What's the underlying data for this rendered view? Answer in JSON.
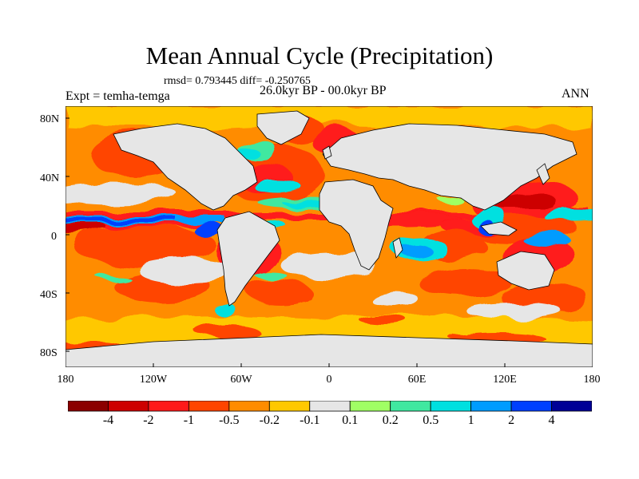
{
  "title": "Mean Annual Cycle (Precipitation)",
  "stats_text": "rmsd= 0.793445 diff= -0.250765",
  "period_text": "26.0kyr BP - 00.0kyr BP",
  "expt_text": "Expt = temha-temga",
  "season_text": "ANN",
  "lat_labels": [
    "80N",
    "40N",
    "0",
    "40S",
    "80S"
  ],
  "lon_labels": [
    "180",
    "120W",
    "60W",
    "0",
    "60E",
    "120E",
    "180"
  ],
  "colorbar": {
    "colors": [
      "#8b0000",
      "#cd0000",
      "#ff1a1a",
      "#ff4500",
      "#ff8c00",
      "#ffc800",
      "#e6e6e6",
      "#a0ff64",
      "#40e8a0",
      "#00e0e0",
      "#009cff",
      "#0040ff",
      "#000096"
    ],
    "labels": [
      "-4",
      "-2",
      "-1",
      "-0.5",
      "-0.2",
      "-0.1",
      "0.1",
      "0.2",
      "0.5",
      "1",
      "2",
      "4"
    ]
  },
  "legend_values": {
    "land_color": "#e6e6e6",
    "dry_ocean_color": "#ff8c00"
  }
}
